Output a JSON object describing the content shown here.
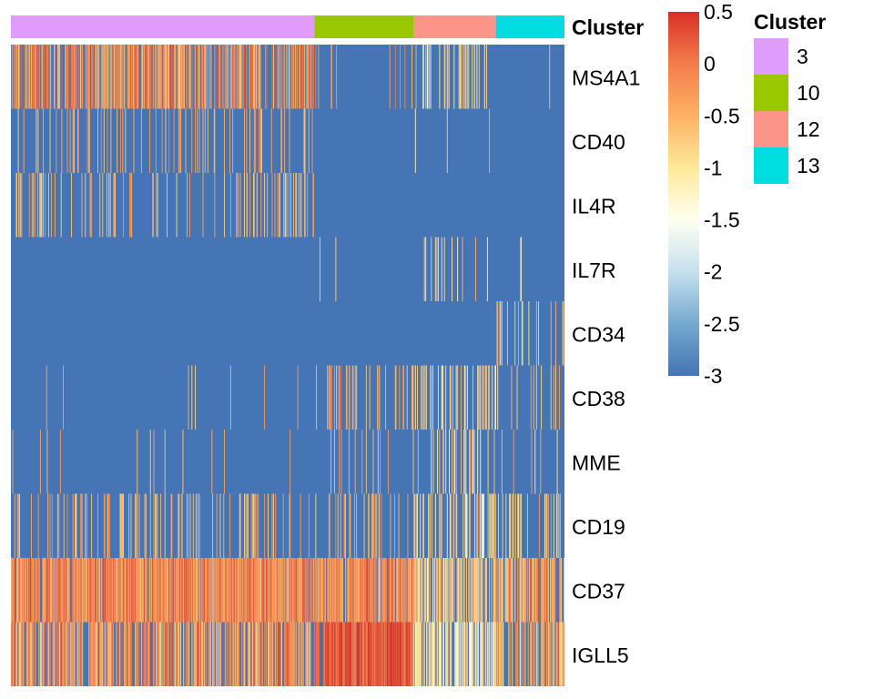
{
  "chart_data": {
    "type": "heatmap",
    "annotation": {
      "label": "Cluster",
      "segments": [
        {
          "cluster": "3",
          "fraction": 0.548
        },
        {
          "cluster": "10",
          "fraction": 0.18
        },
        {
          "cluster": "12",
          "fraction": 0.148
        },
        {
          "cluster": "13",
          "fraction": 0.124
        }
      ]
    },
    "rows": [
      "MS4A1",
      "CD40",
      "IL4R",
      "IL7R",
      "CD34",
      "CD38",
      "MME",
      "CD19",
      "CD37",
      "IGLL5"
    ],
    "row_profiles": {
      "MS4A1": {
        "baseline": -3,
        "3": {
          "rate": 0.62,
          "lo": -0.8,
          "hi": 0.3
        },
        "10": {
          "rate": 0.08,
          "lo": -0.6,
          "hi": 0.2
        },
        "12": {
          "rate": 0.2,
          "lo": -1.4,
          "hi": -0.4
        },
        "13": {
          "rate": 0.02,
          "lo": -0.6,
          "hi": 0.0
        }
      },
      "CD40": {
        "baseline": -3,
        "3": {
          "rate": 0.14,
          "lo": -0.8,
          "hi": -0.1
        },
        "10": {
          "rate": 0.0,
          "lo": -0.6,
          "hi": 0.0
        },
        "12": {
          "rate": 0.02,
          "lo": -1.2,
          "hi": -0.4
        },
        "13": {
          "rate": 0.0,
          "lo": -0.6,
          "hi": 0.0
        }
      },
      "IL4R": {
        "baseline": -3,
        "3": {
          "rate": 0.18,
          "lo": -0.9,
          "hi": -0.2
        },
        "10": {
          "rate": 0.0,
          "lo": -0.6,
          "hi": 0.0
        },
        "12": {
          "rate": 0.0,
          "lo": -0.6,
          "hi": 0.0
        },
        "13": {
          "rate": 0.0,
          "lo": -0.6,
          "hi": 0.0
        }
      },
      "IL7R": {
        "baseline": -3,
        "3": {
          "rate": 0.0,
          "lo": -0.6,
          "hi": 0.0
        },
        "10": {
          "rate": 0.02,
          "lo": -0.8,
          "hi": -0.3
        },
        "12": {
          "rate": 0.09,
          "lo": -1.4,
          "hi": -0.5
        },
        "13": {
          "rate": 0.05,
          "lo": -1.2,
          "hi": -0.5
        }
      },
      "CD34": {
        "baseline": -3,
        "3": {
          "rate": 0.0,
          "lo": -0.6,
          "hi": 0.0
        },
        "10": {
          "rate": 0.0,
          "lo": -0.6,
          "hi": 0.0
        },
        "12": {
          "rate": 0.0,
          "lo": -0.6,
          "hi": 0.0
        },
        "13": {
          "rate": 0.16,
          "lo": -1.1,
          "hi": -0.3
        }
      },
      "CD38": {
        "baseline": -3,
        "3": {
          "rate": 0.015,
          "lo": -0.8,
          "hi": -0.2
        },
        "10": {
          "rate": 0.22,
          "lo": -0.8,
          "hi": 0.0
        },
        "12": {
          "rate": 0.3,
          "lo": -1.4,
          "hi": -0.4
        },
        "13": {
          "rate": 0.14,
          "lo": -1.0,
          "hi": -0.2
        }
      },
      "MME": {
        "baseline": -3,
        "3": {
          "rate": 0.02,
          "lo": -0.8,
          "hi": -0.2
        },
        "10": {
          "rate": 0.06,
          "lo": -0.8,
          "hi": -0.2
        },
        "12": {
          "rate": 0.2,
          "lo": -1.4,
          "hi": -0.4
        },
        "13": {
          "rate": 0.12,
          "lo": -1.1,
          "hi": -0.3
        }
      },
      "CD19": {
        "baseline": -3,
        "3": {
          "rate": 0.22,
          "lo": -0.9,
          "hi": -0.1
        },
        "10": {
          "rate": 0.18,
          "lo": -0.9,
          "hi": -0.1
        },
        "12": {
          "rate": 0.34,
          "lo": -1.4,
          "hi": -0.3
        },
        "13": {
          "rate": 0.26,
          "lo": -1.1,
          "hi": -0.2
        }
      },
      "CD37": {
        "baseline": -3,
        "3": {
          "rate": 0.93,
          "lo": -0.7,
          "hi": 0.4
        },
        "10": {
          "rate": 0.85,
          "lo": -0.7,
          "hi": 0.3
        },
        "12": {
          "rate": 0.62,
          "lo": -1.4,
          "hi": -0.2
        },
        "13": {
          "rate": 0.72,
          "lo": -1.0,
          "hi": 0.2
        }
      },
      "IGLL5": {
        "baseline": -3,
        "3": {
          "rate": 0.68,
          "lo": -0.9,
          "hi": 0.3
        },
        "10": {
          "rate": 0.95,
          "lo": -0.1,
          "hi": 0.55
        },
        "12": {
          "rate": 0.72,
          "lo": -1.5,
          "hi": -0.5
        },
        "13": {
          "rate": 0.55,
          "lo": -1.1,
          "hi": 0.1
        }
      }
    },
    "color_scale": {
      "min": -3,
      "max": 0.5,
      "stops": [
        {
          "value": -3,
          "color": "#4575b4"
        },
        {
          "value": -2.5,
          "color": "#74a9cf"
        },
        {
          "value": -2,
          "color": "#c6e0ef"
        },
        {
          "value": -1.5,
          "color": "#fffff0"
        },
        {
          "value": -1,
          "color": "#fee99a"
        },
        {
          "value": -0.5,
          "color": "#fdb165"
        },
        {
          "value": 0,
          "color": "#f47d4b"
        },
        {
          "value": 0.5,
          "color": "#d73027"
        }
      ],
      "ticks": [
        "0.5",
        "0",
        "-0.5",
        "-1",
        "-1.5",
        "-2",
        "-2.5",
        "-3"
      ]
    },
    "legend": {
      "title": "Cluster",
      "items": [
        {
          "label": "3",
          "color": "#df9cfb"
        },
        {
          "label": "10",
          "color": "#99c800"
        },
        {
          "label": "12",
          "color": "#fb958a"
        },
        {
          "label": "13",
          "color": "#00dde0"
        }
      ]
    }
  }
}
